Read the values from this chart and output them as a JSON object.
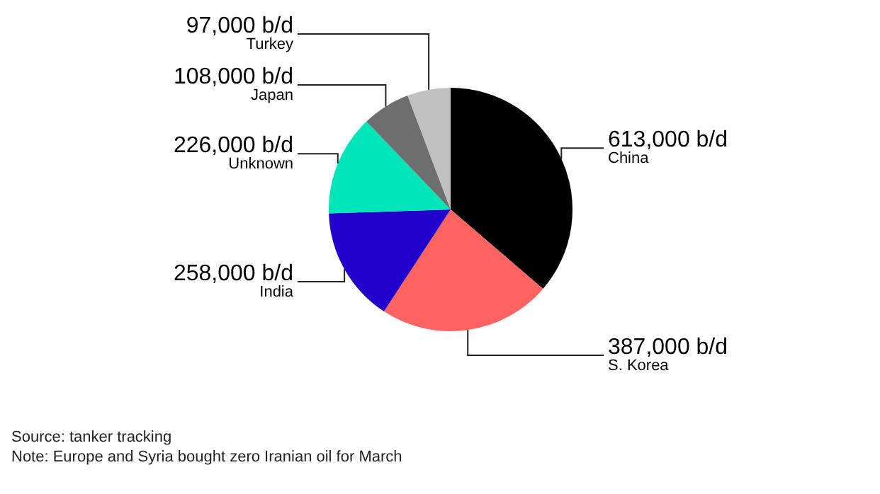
{
  "chart_data": {
    "type": "pie",
    "categories": [
      "China",
      "S. Korea",
      "India",
      "Unknown",
      "Japan",
      "Turkey"
    ],
    "values": [
      613000,
      387000,
      258000,
      226000,
      108000,
      97000
    ],
    "value_labels": [
      "613,000 b/d",
      "387,000 b/d",
      "258,000 b/d",
      "226,000 b/d",
      "108,000 b/d",
      "97,000 b/d"
    ],
    "colors": [
      "#000000",
      "#ff6361",
      "#2200cc",
      "#00e6b8",
      "#6e6e6e",
      "#c0c0c0"
    ],
    "annotations": [
      "Source: tanker tracking",
      "Note: Europe and Syria bought zero Iranian oil for March"
    ]
  }
}
